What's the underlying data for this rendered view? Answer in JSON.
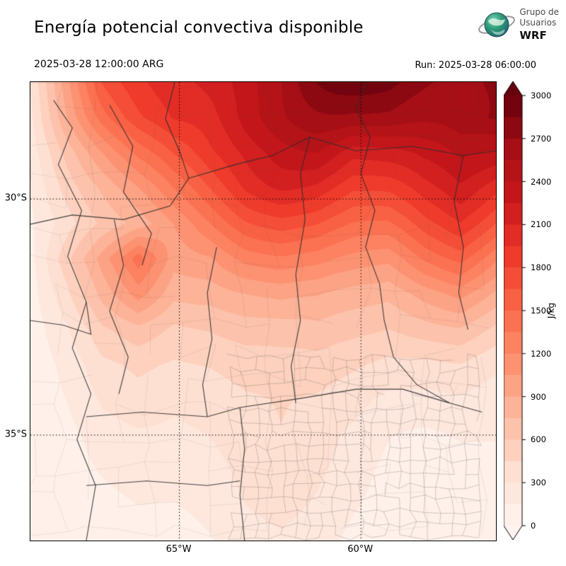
{
  "header": {
    "title": "Energía potencial convectiva disponible",
    "valid_time": "2025-03-28 12:00:00 ARG",
    "run_label": "Run: 2025-03-28 06:00:00",
    "logo": {
      "line1": "Grupo de",
      "line2": "Usuarios",
      "line3": "WRF"
    }
  },
  "map": {
    "x_ticks": [
      {
        "label": "65°W",
        "pos": 0.32
      },
      {
        "label": "60°W",
        "pos": 0.71
      }
    ],
    "y_ticks": [
      {
        "label": "30°S",
        "pos": 0.255
      },
      {
        "label": "35°S",
        "pos": 0.77
      }
    ]
  },
  "colorbar": {
    "unit": "J/kg",
    "min": 0,
    "max": 3000,
    "tick_step": 300,
    "ticks": [
      0,
      300,
      600,
      900,
      1200,
      1500,
      1800,
      2100,
      2400,
      2700,
      3000
    ]
  },
  "chart_data": {
    "type": "heatmap",
    "title": "Energía potencial convectiva disponible",
    "units": "J/kg",
    "value_min": 0,
    "value_max": 3000,
    "level_step": 150,
    "colormap": [
      [
        0.0,
        "#fff5f0"
      ],
      [
        0.125,
        "#fee0d2"
      ],
      [
        0.25,
        "#fcbba1"
      ],
      [
        0.375,
        "#fc9272"
      ],
      [
        0.5,
        "#fb6a4a"
      ],
      [
        0.625,
        "#ef3b2c"
      ],
      [
        0.75,
        "#cb181d"
      ],
      [
        0.875,
        "#a50f15"
      ],
      [
        1.0,
        "#67000d"
      ]
    ],
    "grid": [
      [
        300,
        900,
        1500,
        1800,
        2100,
        2300,
        2500,
        2600,
        2800,
        2900,
        3000,
        3000,
        3000,
        3000
      ],
      [
        250,
        800,
        1300,
        1700,
        2000,
        2100,
        2300,
        2400,
        2500,
        2600,
        2800,
        2900,
        3000,
        2900
      ],
      [
        200,
        600,
        1000,
        1400,
        1700,
        1900,
        2000,
        2100,
        2200,
        2100,
        2300,
        2500,
        2600,
        2400
      ],
      [
        150,
        500,
        800,
        1100,
        1400,
        1600,
        1800,
        1900,
        1900,
        1800,
        1900,
        2100,
        2200,
        1900
      ],
      [
        120,
        400,
        700,
        900,
        1100,
        1300,
        1500,
        1600,
        1600,
        1500,
        1500,
        1700,
        1800,
        1500
      ],
      [
        100,
        600,
        1100,
        1600,
        1000,
        1000,
        1200,
        1300,
        1300,
        1200,
        1100,
        1300,
        1400,
        1100
      ],
      [
        80,
        450,
        900,
        1200,
        800,
        800,
        900,
        1000,
        1000,
        900,
        800,
        900,
        1000,
        800
      ],
      [
        60,
        300,
        600,
        700,
        550,
        600,
        700,
        750,
        800,
        700,
        600,
        650,
        700,
        550
      ],
      [
        50,
        200,
        400,
        450,
        400,
        450,
        550,
        600,
        600,
        500,
        400,
        400,
        450,
        350
      ],
      [
        40,
        150,
        300,
        350,
        300,
        350,
        450,
        500,
        450,
        350,
        250,
        250,
        300,
        250
      ],
      [
        30,
        100,
        200,
        250,
        250,
        300,
        400,
        450,
        350,
        250,
        150,
        120,
        180,
        180
      ],
      [
        20,
        80,
        150,
        200,
        200,
        250,
        350,
        400,
        300,
        200,
        100,
        60,
        100,
        120
      ],
      [
        10,
        50,
        100,
        150,
        150,
        200,
        300,
        320,
        250,
        150,
        80,
        40,
        60,
        90
      ],
      [
        0,
        30,
        80,
        100,
        100,
        150,
        250,
        260,
        200,
        100,
        50,
        20,
        40,
        60
      ]
    ],
    "gridlines": {
      "horizontal": [
        0.255,
        0.77
      ],
      "vertical": [
        0.32,
        0.71
      ]
    },
    "boundaries": [
      [
        [
          0.72,
          0.0
        ],
        [
          0.7,
          0.06
        ],
        [
          0.73,
          0.12
        ],
        [
          0.71,
          0.2
        ],
        [
          0.74,
          0.28
        ],
        [
          0.72,
          0.36
        ],
        [
          0.75,
          0.44
        ],
        [
          0.76,
          0.52
        ],
        [
          0.78,
          0.6
        ],
        [
          0.83,
          0.66
        ],
        [
          0.9,
          0.7
        ],
        [
          0.97,
          0.72
        ]
      ],
      [
        [
          0.6,
          0.12
        ],
        [
          0.58,
          0.2
        ],
        [
          0.59,
          0.3
        ],
        [
          0.57,
          0.42
        ],
        [
          0.58,
          0.52
        ],
        [
          0.56,
          0.62
        ],
        [
          0.57,
          0.7
        ]
      ],
      [
        [
          0.34,
          0.21
        ],
        [
          0.44,
          0.18
        ],
        [
          0.52,
          0.16
        ],
        [
          0.6,
          0.12
        ]
      ],
      [
        [
          0.05,
          0.04
        ],
        [
          0.09,
          0.1
        ],
        [
          0.06,
          0.18
        ],
        [
          0.11,
          0.28
        ],
        [
          0.08,
          0.38
        ],
        [
          0.12,
          0.48
        ],
        [
          0.09,
          0.58
        ],
        [
          0.13,
          0.68
        ],
        [
          0.1,
          0.78
        ],
        [
          0.14,
          0.88
        ],
        [
          0.12,
          1.0
        ]
      ],
      [
        [
          0.4,
          0.36
        ],
        [
          0.38,
          0.46
        ],
        [
          0.39,
          0.56
        ],
        [
          0.37,
          0.66
        ],
        [
          0.38,
          0.73
        ]
      ],
      [
        [
          0.12,
          0.73
        ],
        [
          0.24,
          0.72
        ],
        [
          0.38,
          0.73
        ],
        [
          0.45,
          0.71
        ]
      ],
      [
        [
          0.45,
          0.71
        ],
        [
          0.46,
          0.8
        ],
        [
          0.45,
          0.9
        ],
        [
          0.46,
          1.0
        ]
      ],
      [
        [
          0.45,
          0.71
        ],
        [
          0.58,
          0.69
        ],
        [
          0.7,
          0.67
        ],
        [
          0.8,
          0.67
        ],
        [
          0.9,
          0.7
        ]
      ],
      [
        [
          0.0,
          0.31
        ],
        [
          0.09,
          0.29
        ],
        [
          0.2,
          0.3
        ],
        [
          0.3,
          0.27
        ],
        [
          0.34,
          0.21
        ]
      ],
      [
        [
          0.17,
          0.05
        ],
        [
          0.22,
          0.14
        ],
        [
          0.2,
          0.24
        ],
        [
          0.26,
          0.33
        ],
        [
          0.24,
          0.4
        ]
      ],
      [
        [
          0.31,
          0.0
        ],
        [
          0.29,
          0.08
        ],
        [
          0.32,
          0.15
        ],
        [
          0.34,
          0.21
        ]
      ],
      [
        [
          0.6,
          0.12
        ],
        [
          0.7,
          0.15
        ],
        [
          0.82,
          0.14
        ],
        [
          0.93,
          0.16
        ],
        [
          1.0,
          0.15
        ]
      ],
      [
        [
          0.93,
          0.16
        ],
        [
          0.91,
          0.26
        ],
        [
          0.93,
          0.36
        ],
        [
          0.92,
          0.46
        ],
        [
          0.94,
          0.54
        ]
      ],
      [
        [
          0.0,
          0.52
        ],
        [
          0.07,
          0.53
        ],
        [
          0.13,
          0.55
        ],
        [
          0.12,
          0.48
        ]
      ],
      [
        [
          0.18,
          0.3
        ],
        [
          0.2,
          0.4
        ],
        [
          0.17,
          0.5
        ],
        [
          0.21,
          0.6
        ],
        [
          0.19,
          0.68
        ]
      ],
      [
        [
          0.12,
          0.88
        ],
        [
          0.25,
          0.87
        ],
        [
          0.38,
          0.88
        ],
        [
          0.45,
          0.87
        ]
      ]
    ],
    "department_mesh": {
      "regions": [
        {
          "seed": 11,
          "x0": 0.0,
          "y0": 0.0,
          "x1": 1.0,
          "y1": 1.0,
          "cell": 0.065,
          "jitter": 0.55,
          "alpha": 0.18,
          "skip": 0.38
        },
        {
          "seed": 7,
          "x0": 0.43,
          "y0": 0.6,
          "x1": 0.97,
          "y1": 1.0,
          "cell": 0.028,
          "jitter": 0.55,
          "alpha": 0.45,
          "skip": 0.12
        }
      ]
    }
  }
}
